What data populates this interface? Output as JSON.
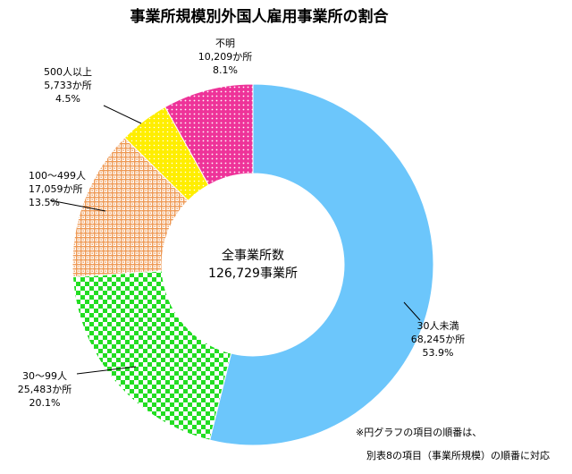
{
  "chart_data": {
    "type": "pie",
    "title": "事業所規模別外国人雇用事業所の割合",
    "center_label": [
      "全事業所数",
      "126,729事業所"
    ],
    "slices": [
      {
        "name": "30人未満",
        "count": "68,245か所",
        "percent": "53.9%",
        "value": 53.9,
        "color": "#6cc6fb",
        "pattern": "solid"
      },
      {
        "name": "30～99人",
        "count": "25,483か所",
        "percent": "20.1%",
        "value": 20.1,
        "color": "#22dd22",
        "pattern": "checker"
      },
      {
        "name": "100～499人",
        "count": "17,059か所",
        "percent": "13.5%",
        "value": 13.5,
        "color": "#ee9955",
        "pattern": "grid"
      },
      {
        "name": "500人以上",
        "count": "5,733か所",
        "percent": "4.5%",
        "value": 4.5,
        "color": "#ffee00",
        "pattern": "dots"
      },
      {
        "name": "不明",
        "count": "10,209か所",
        "percent": "8.1%",
        "value": 8.1,
        "color": "#ee3399",
        "pattern": "dots"
      }
    ],
    "legend": "none"
  },
  "notes": [
    "※円グラフの項目の順番は、",
    "別表8の項目（事業所規模）の順番に対応"
  ]
}
